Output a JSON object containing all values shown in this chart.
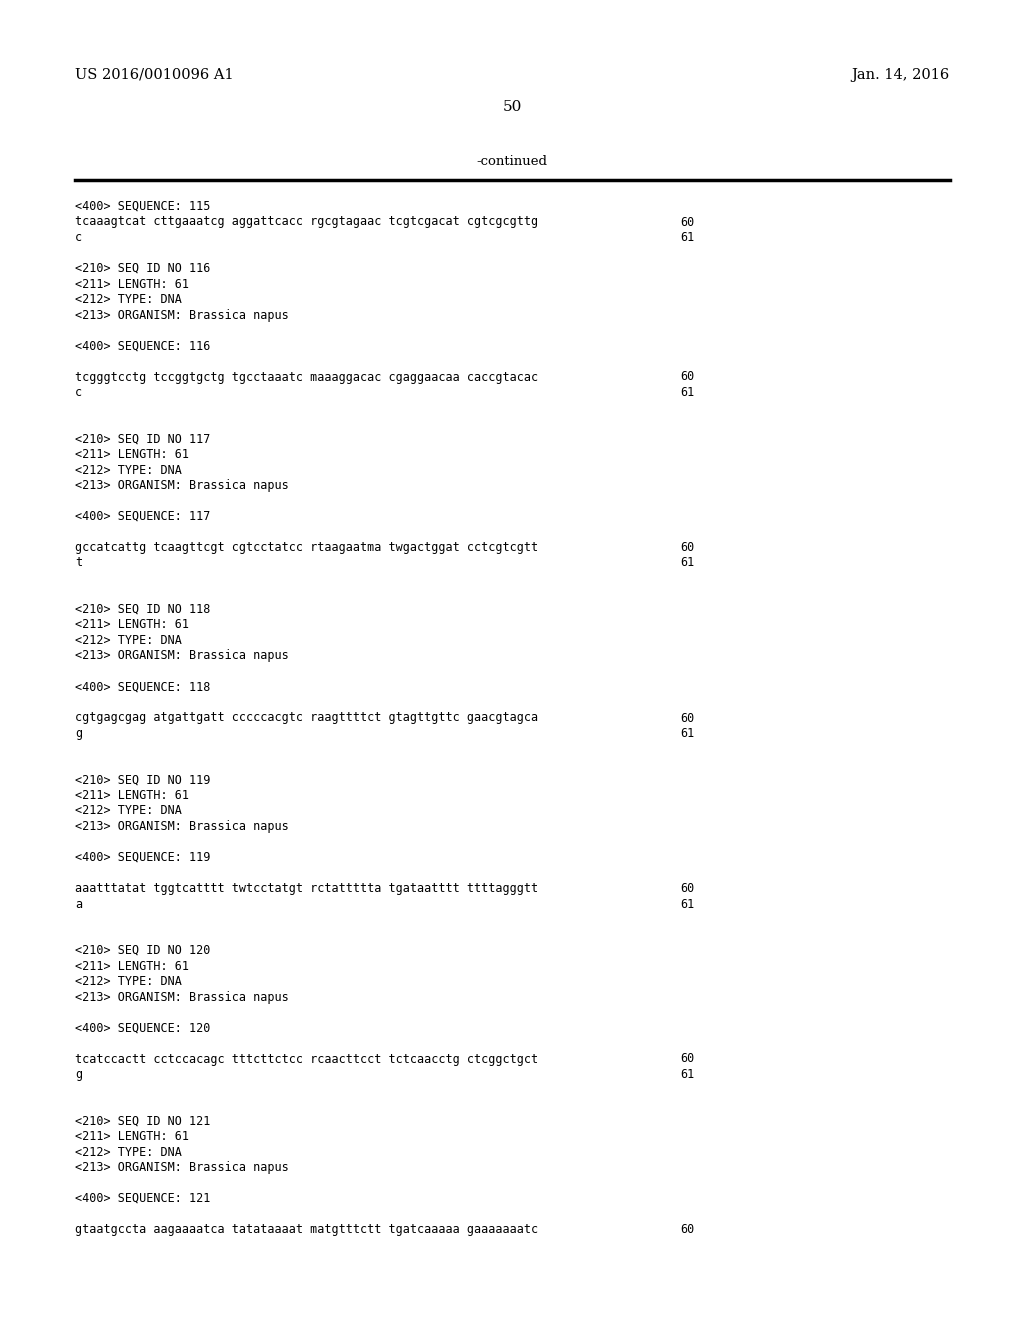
{
  "patent_number": "US 2016/0010096 A1",
  "patent_date": "Jan. 14, 2016",
  "page_number": "50",
  "continued_text": "-continued",
  "background_color": "#ffffff",
  "text_color": "#000000",
  "mono_font_size": 8.5,
  "header_font_size": 10.5,
  "page_num_font_size": 11.0,
  "content": [
    {
      "type": "seq400",
      "text": "<400> SEQUENCE: 115"
    },
    {
      "type": "seqline",
      "text": "tcaaagtcat cttgaaatcg aggattcacc rgcgtagaac tcgtcgacat cgtcgcgttg",
      "num": "60"
    },
    {
      "type": "seqline",
      "text": "c",
      "num": "61"
    },
    {
      "type": "blank"
    },
    {
      "type": "seq210",
      "text": "<210> SEQ ID NO 116"
    },
    {
      "type": "seq210",
      "text": "<211> LENGTH: 61"
    },
    {
      "type": "seq210",
      "text": "<212> TYPE: DNA"
    },
    {
      "type": "seq210",
      "text": "<213> ORGANISM: Brassica napus"
    },
    {
      "type": "blank"
    },
    {
      "type": "seq400",
      "text": "<400> SEQUENCE: 116"
    },
    {
      "type": "blank"
    },
    {
      "type": "seqline",
      "text": "tcgggtcctg tccggtgctg tgcctaaatc maaaggacac cgaggaacaa caccgtacac",
      "num": "60"
    },
    {
      "type": "seqline",
      "text": "c",
      "num": "61"
    },
    {
      "type": "blank"
    },
    {
      "type": "blank"
    },
    {
      "type": "seq210",
      "text": "<210> SEQ ID NO 117"
    },
    {
      "type": "seq210",
      "text": "<211> LENGTH: 61"
    },
    {
      "type": "seq210",
      "text": "<212> TYPE: DNA"
    },
    {
      "type": "seq210",
      "text": "<213> ORGANISM: Brassica napus"
    },
    {
      "type": "blank"
    },
    {
      "type": "seq400",
      "text": "<400> SEQUENCE: 117"
    },
    {
      "type": "blank"
    },
    {
      "type": "seqline",
      "text": "gccatcattg tcaagttcgt cgtcctatcc rtaagaatma twgactggat cctcgtcgtt",
      "num": "60"
    },
    {
      "type": "seqline",
      "text": "t",
      "num": "61"
    },
    {
      "type": "blank"
    },
    {
      "type": "blank"
    },
    {
      "type": "seq210",
      "text": "<210> SEQ ID NO 118"
    },
    {
      "type": "seq210",
      "text": "<211> LENGTH: 61"
    },
    {
      "type": "seq210",
      "text": "<212> TYPE: DNA"
    },
    {
      "type": "seq210",
      "text": "<213> ORGANISM: Brassica napus"
    },
    {
      "type": "blank"
    },
    {
      "type": "seq400",
      "text": "<400> SEQUENCE: 118"
    },
    {
      "type": "blank"
    },
    {
      "type": "seqline",
      "text": "cgtgagcgag atgattgatt cccccacgtc raagttttct gtagttgttc gaacgtagca",
      "num": "60"
    },
    {
      "type": "seqline",
      "text": "g",
      "num": "61"
    },
    {
      "type": "blank"
    },
    {
      "type": "blank"
    },
    {
      "type": "seq210",
      "text": "<210> SEQ ID NO 119"
    },
    {
      "type": "seq210",
      "text": "<211> LENGTH: 61"
    },
    {
      "type": "seq210",
      "text": "<212> TYPE: DNA"
    },
    {
      "type": "seq210",
      "text": "<213> ORGANISM: Brassica napus"
    },
    {
      "type": "blank"
    },
    {
      "type": "seq400",
      "text": "<400> SEQUENCE: 119"
    },
    {
      "type": "blank"
    },
    {
      "type": "seqline",
      "text": "aaatttatat tggtcatttt twtcctatgt rctattttta tgataatttt ttttagggtt",
      "num": "60"
    },
    {
      "type": "seqline",
      "text": "a",
      "num": "61"
    },
    {
      "type": "blank"
    },
    {
      "type": "blank"
    },
    {
      "type": "seq210",
      "text": "<210> SEQ ID NO 120"
    },
    {
      "type": "seq210",
      "text": "<211> LENGTH: 61"
    },
    {
      "type": "seq210",
      "text": "<212> TYPE: DNA"
    },
    {
      "type": "seq210",
      "text": "<213> ORGANISM: Brassica napus"
    },
    {
      "type": "blank"
    },
    {
      "type": "seq400",
      "text": "<400> SEQUENCE: 120"
    },
    {
      "type": "blank"
    },
    {
      "type": "seqline",
      "text": "tcatccactt cctccacagc tttcttctcc rcaacttcct tctcaacctg ctcggctgct",
      "num": "60"
    },
    {
      "type": "seqline",
      "text": "g",
      "num": "61"
    },
    {
      "type": "blank"
    },
    {
      "type": "blank"
    },
    {
      "type": "seq210",
      "text": "<210> SEQ ID NO 121"
    },
    {
      "type": "seq210",
      "text": "<211> LENGTH: 61"
    },
    {
      "type": "seq210",
      "text": "<212> TYPE: DNA"
    },
    {
      "type": "seq210",
      "text": "<213> ORGANISM: Brassica napus"
    },
    {
      "type": "blank"
    },
    {
      "type": "seq400",
      "text": "<400> SEQUENCE: 121"
    },
    {
      "type": "blank"
    },
    {
      "type": "seqline",
      "text": "gtaatgccta aagaaaatca tatataaaat matgtttctt tgatcaaaaa gaaaaaaatc",
      "num": "60"
    }
  ]
}
